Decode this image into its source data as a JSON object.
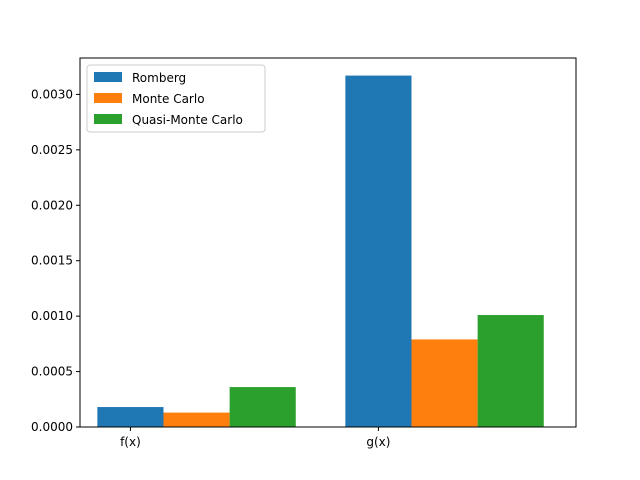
{
  "chart_data": {
    "type": "bar",
    "title": "",
    "xlabel": "",
    "ylabel": "",
    "categories": [
      "f(x)",
      "g(x)"
    ],
    "series": [
      {
        "name": "Romberg",
        "color": "#1f77b4",
        "values": [
          0.00018,
          0.00317
        ]
      },
      {
        "name": "Monte Carlo",
        "color": "#ff7f0e",
        "values": [
          0.00013,
          0.00079
        ]
      },
      {
        "name": "Quasi-Monte Carlo",
        "color": "#2ca02c",
        "values": [
          0.00036,
          0.00101
        ]
      }
    ],
    "ylim": [
      0,
      0.0033285
    ],
    "yticks": [
      0.0,
      0.0005,
      0.001,
      0.0015,
      0.002,
      0.0025,
      0.003
    ],
    "ytick_labels": [
      "0.0000",
      "0.0005",
      "0.0010",
      "0.0015",
      "0.0020",
      "0.0025",
      "0.0030"
    ],
    "grid": false,
    "legend_position": "top-left"
  }
}
